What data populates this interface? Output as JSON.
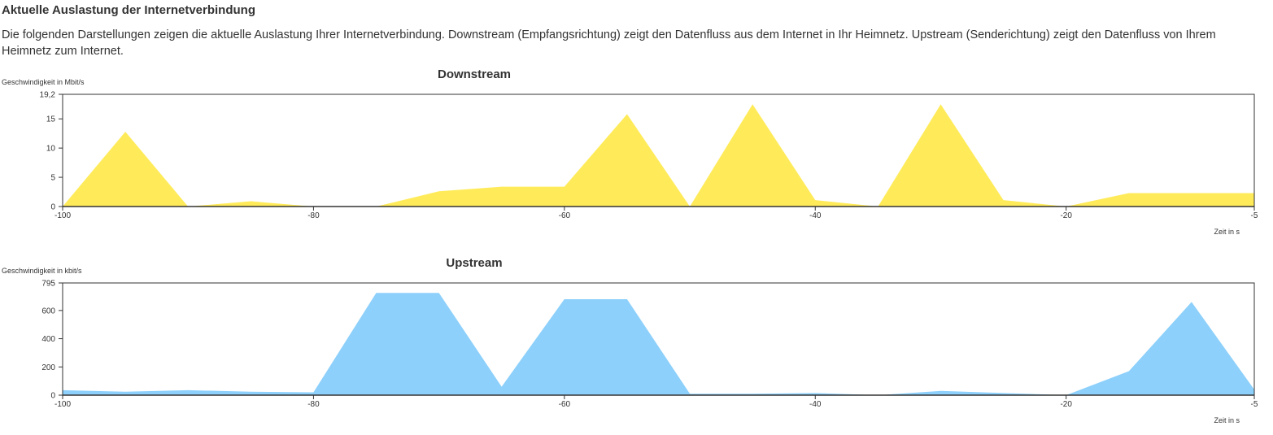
{
  "page": {
    "heading": "Aktuelle Auslastung der Internetverbindung",
    "description": "Die folgenden Darstellungen zeigen die aktuelle Auslastung Ihrer Internetverbindung. Downstream (Empfangsrichtung) zeigt den Datenfluss aus dem Internet in Ihr Heimnetz. Upstream (Senderichtung) zeigt den Datenfluss von Ihrem Heimnetz zum Internet."
  },
  "chart_data": [
    {
      "type": "area",
      "title": "Downstream",
      "ylabel": "Geschwindigkeit in Mbit/s",
      "xlabel": "Zeit in s",
      "color": "#ffeb5a",
      "ylim": [
        0,
        19.2
      ],
      "xlim": [
        -100,
        -5
      ],
      "yticks": [
        "0",
        "5",
        "10",
        "15",
        "19,2"
      ],
      "ytick_values": [
        0,
        5,
        10,
        15,
        19.2
      ],
      "xticks": [
        "-100",
        "-80",
        "-60",
        "-40",
        "-20",
        "-5"
      ],
      "xtick_values": [
        -100,
        -80,
        -60,
        -40,
        -20,
        -5
      ],
      "grid": false,
      "x": [
        -100,
        -95,
        -90,
        -85,
        -80,
        -75,
        -70,
        -65,
        -60,
        -55,
        -50,
        -45,
        -40,
        -35,
        -30,
        -25,
        -20,
        -15,
        -10,
        -5
      ],
      "values": [
        0,
        12.8,
        0,
        0.9,
        0,
        0,
        2.6,
        3.4,
        3.4,
        15.8,
        0,
        17.5,
        1.1,
        0,
        17.5,
        1.1,
        0,
        2.3,
        2.3,
        2.3
      ]
    },
    {
      "type": "area",
      "title": "Upstream",
      "ylabel": "Geschwindigkeit in kbit/s",
      "xlabel": "Zeit in s",
      "color": "#8dd0fb",
      "ylim": [
        0,
        795
      ],
      "xlim": [
        -100,
        -5
      ],
      "yticks": [
        "0",
        "200",
        "400",
        "600",
        "795"
      ],
      "ytick_values": [
        0,
        200,
        400,
        600,
        795
      ],
      "xticks": [
        "-100",
        "-80",
        "-60",
        "-40",
        "-20",
        "-5"
      ],
      "xtick_values": [
        -100,
        -80,
        -60,
        -40,
        -20,
        -5
      ],
      "grid": false,
      "x": [
        -100,
        -95,
        -90,
        -85,
        -80,
        -75,
        -70,
        -65,
        -60,
        -55,
        -50,
        -45,
        -40,
        -35,
        -30,
        -25,
        -20,
        -15,
        -10,
        -5
      ],
      "values": [
        35,
        25,
        35,
        25,
        20,
        725,
        725,
        60,
        680,
        680,
        10,
        10,
        15,
        0,
        30,
        15,
        0,
        170,
        660,
        40
      ]
    }
  ]
}
